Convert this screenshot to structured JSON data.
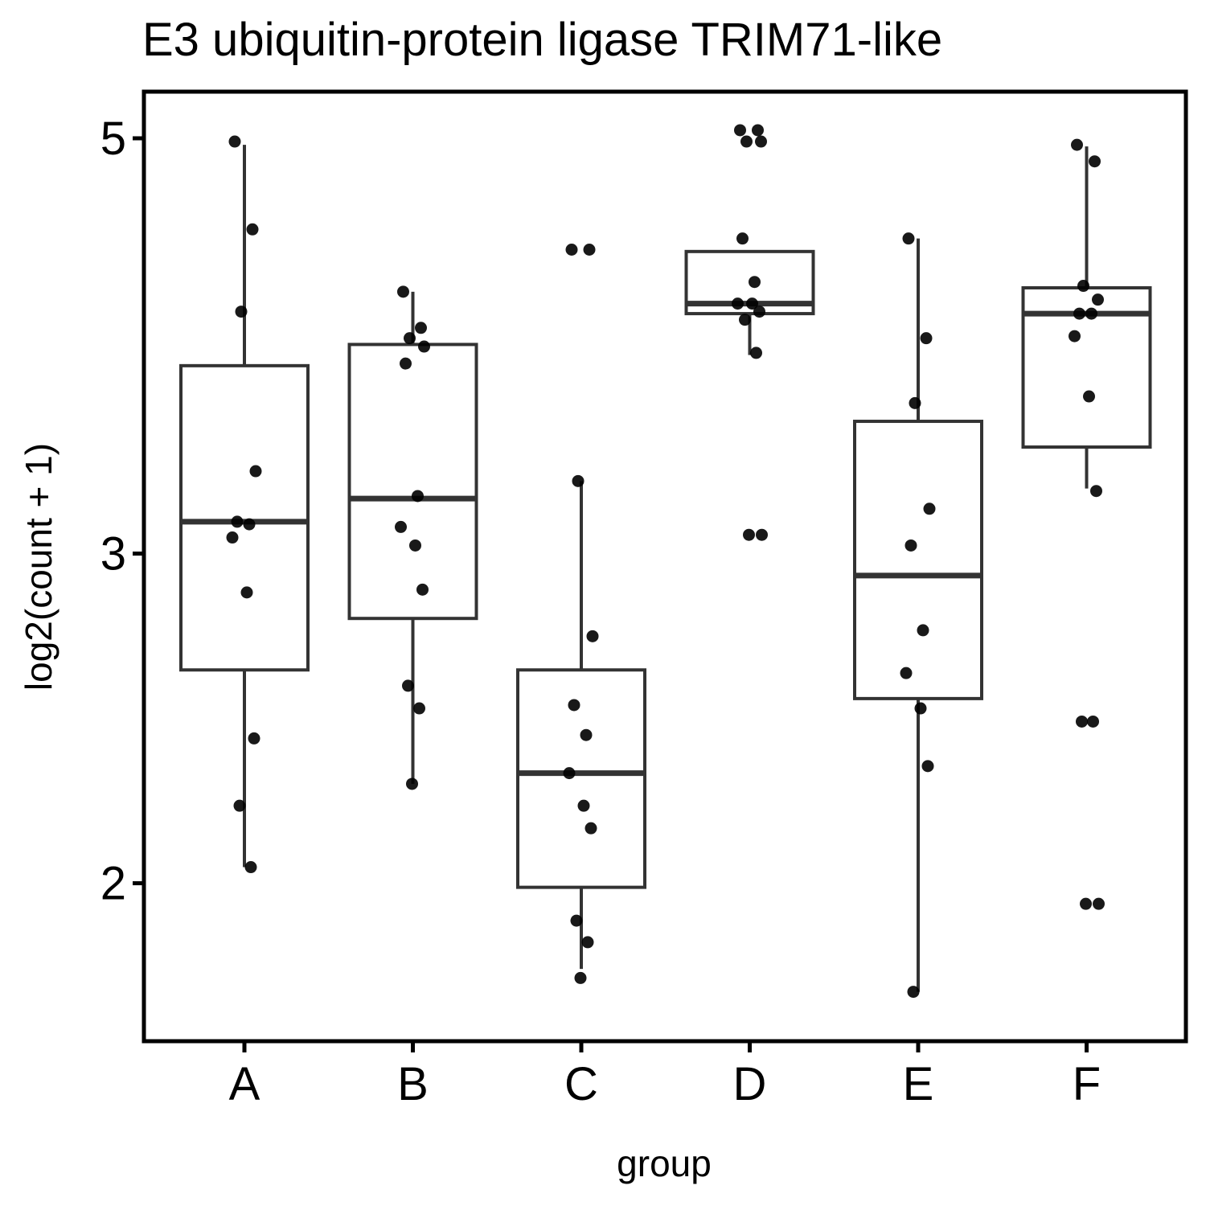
{
  "chart_data": {
    "type": "boxplot",
    "title": "E3 ubiquitin-protein ligase TRIM71-like",
    "xlabel": "group",
    "ylabel": "log2(count + 1)",
    "y_scale": "log",
    "ylim": [
      1.68,
      5.2
    ],
    "yticks": [
      2,
      3,
      5
    ],
    "ytick_labels": [
      "2",
      "3",
      "5"
    ],
    "categories": [
      "A",
      "B",
      "C",
      "D",
      "E",
      "F"
    ],
    "grid": false,
    "legend": "none",
    "colors": {
      "box": "#333333",
      "point": "#000000",
      "axis": "#000000"
    },
    "boxes": [
      {
        "group": "A",
        "lower_whisker": 2.04,
        "q1": 2.6,
        "median": 3.12,
        "q3": 3.78,
        "upper_whisker": 4.96
      },
      {
        "group": "B",
        "lower_whisker": 2.26,
        "q1": 2.77,
        "median": 3.21,
        "q3": 3.88,
        "upper_whisker": 4.14
      },
      {
        "group": "C",
        "lower_whisker": 1.8,
        "q1": 1.99,
        "median": 2.29,
        "q3": 2.6,
        "upper_whisker": 3.28
      },
      {
        "group": "D",
        "lower_whisker": 3.83,
        "q1": 4.03,
        "median": 4.08,
        "q3": 4.35,
        "upper_whisker": 4.35
      },
      {
        "group": "E",
        "lower_whisker": 1.75,
        "q1": 2.51,
        "median": 2.92,
        "q3": 3.53,
        "upper_whisker": 4.42
      },
      {
        "group": "F",
        "lower_whisker": 3.25,
        "q1": 3.42,
        "median": 4.03,
        "q3": 4.16,
        "upper_whisker": 4.95
      }
    ],
    "points": [
      {
        "group": "A",
        "values": [
          4.98,
          4.47,
          4.04,
          3.32,
          3.12,
          3.11,
          3.06,
          2.86,
          2.39,
          2.2,
          2.04
        ]
      },
      {
        "group": "B",
        "values": [
          4.14,
          3.96,
          3.91,
          3.87,
          3.79,
          3.22,
          3.1,
          3.03,
          2.87,
          2.55,
          2.48,
          2.26
        ]
      },
      {
        "group": "C",
        "values": [
          4.36,
          4.36,
          3.28,
          2.71,
          2.49,
          2.4,
          2.29,
          2.2,
          2.14,
          1.91,
          1.86,
          1.78
        ]
      },
      {
        "group": "D",
        "values": [
          5.05,
          5.05,
          4.98,
          4.98,
          4.42,
          4.19,
          4.08,
          4.08,
          4.04,
          4.0,
          3.84,
          3.07,
          3.07
        ]
      },
      {
        "group": "E",
        "values": [
          4.42,
          3.91,
          3.61,
          3.17,
          3.03,
          2.73,
          2.59,
          2.48,
          2.31,
          1.75
        ]
      },
      {
        "group": "F",
        "values": [
          4.96,
          4.86,
          4.17,
          4.1,
          4.03,
          4.03,
          3.92,
          3.64,
          3.24,
          2.44,
          2.44,
          1.95,
          1.95
        ]
      }
    ]
  }
}
